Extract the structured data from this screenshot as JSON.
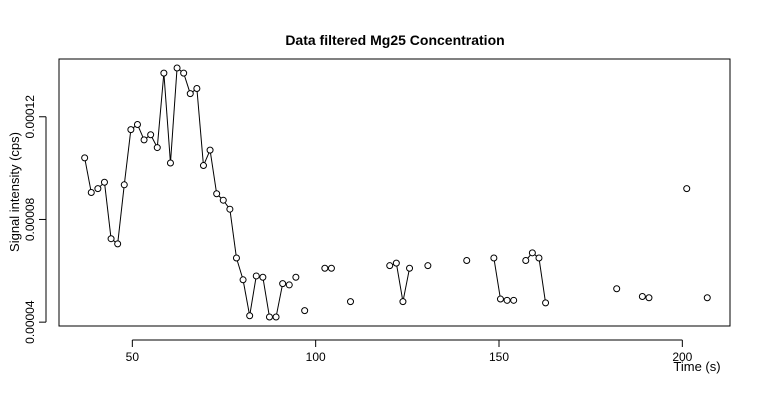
{
  "chart_data": {
    "type": "line",
    "title": "Data filtered Mg25 Concentration",
    "xlabel": "Time (s)",
    "ylabel": "Signal intensity (cps)",
    "xlim": [
      30,
      213
    ],
    "ylim": [
      3.85e-05,
      0.0001425
    ],
    "x_ticks": [
      50,
      100,
      150,
      200
    ],
    "x_tick_labels": [
      "50",
      "100",
      "150",
      "200"
    ],
    "y_ticks": [
      4e-05,
      8e-05,
      0.00012
    ],
    "y_tick_labels": [
      "0.00004",
      "0.00008",
      "0.00012"
    ],
    "grid": false,
    "segments": [
      {
        "x": [
          37.0,
          38.8
        ],
        "y": [
          0.000104,
          9.05e-05
        ]
      },
      {
        "x": [
          40.6,
          42.4,
          44.2,
          46.0,
          47.8,
          49.6,
          51.4,
          53.2,
          55.0,
          56.8,
          58.6,
          60.4,
          62.2,
          64.0,
          65.8,
          67.6,
          69.4,
          71.2,
          73.0,
          74.8,
          76.6,
          78.4,
          80.2,
          82.0,
          83.8,
          85.6,
          87.4,
          89.2,
          91.0,
          92.8
        ],
        "y": [
          9.2e-05,
          9.45e-05,
          7.25e-05,
          7.05e-05,
          9.35e-05,
          0.000115,
          0.000117,
          0.000111,
          0.000113,
          0.000108,
          0.000137,
          0.000102,
          0.000139,
          0.000137,
          0.000129,
          0.000131,
          0.000101,
          0.000107,
          9e-05,
          8.75e-05,
          8.4e-05,
          6.5e-05,
          5.65e-05,
          4.25e-05,
          5.8e-05,
          5.75e-05,
          4.2e-05,
          4.2e-05,
          5.5e-05,
          5.45e-05
        ]
      },
      {
        "x": [
          94.6
        ],
        "y": [
          5.75e-05
        ]
      },
      {
        "x": [
          97.0
        ],
        "y": [
          4.45e-05
        ]
      },
      {
        "x": [
          102.5,
          104.3
        ],
        "y": [
          6.1e-05,
          6.1e-05
        ]
      },
      {
        "x": [
          109.5
        ],
        "y": [
          4.8e-05
        ]
      },
      {
        "x": [
          120.2,
          122.0,
          123.8,
          125.6
        ],
        "y": [
          6.2e-05,
          6.3e-05,
          4.8e-05,
          6.1e-05
        ]
      },
      {
        "x": [
          130.6
        ],
        "y": [
          6.2e-05
        ]
      },
      {
        "x": [
          141.2
        ],
        "y": [
          6.4e-05
        ]
      },
      {
        "x": [
          148.6,
          150.4,
          152.2,
          154.0
        ],
        "y": [
          6.5e-05,
          4.9e-05,
          4.85e-05,
          4.85e-05
        ]
      },
      {
        "x": [
          157.3,
          159.1,
          160.9,
          162.7
        ],
        "y": [
          6.4e-05,
          6.7e-05,
          6.5e-05,
          4.75e-05
        ]
      },
      {
        "x": [
          182.1
        ],
        "y": [
          5.3e-05
        ]
      },
      {
        "x": [
          189.1,
          190.9
        ],
        "y": [
          5e-05,
          4.95e-05
        ]
      },
      {
        "x": [
          201.2
        ],
        "y": [
          9.2e-05
        ]
      },
      {
        "x": [
          206.8
        ],
        "y": [
          4.95e-05
        ]
      }
    ]
  }
}
